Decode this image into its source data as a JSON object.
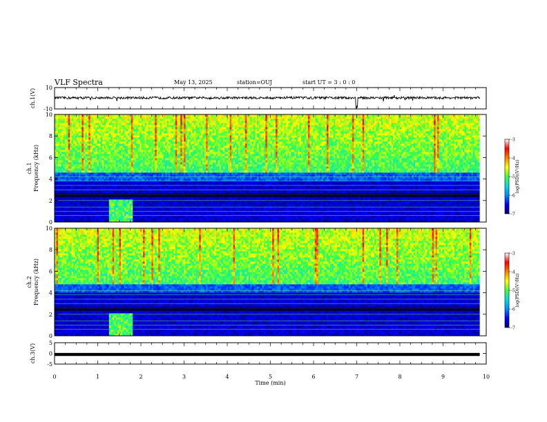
{
  "header": {
    "title": "VLF Spectra",
    "date": "May 13, 2025",
    "station": "station=OUJ",
    "start": "start  UT =   3 : 0  : 0"
  },
  "chart_data": [
    {
      "type": "line",
      "panel": "ch1-waveform",
      "ylabel": "ch.1(V)",
      "ylim": [
        -10,
        10
      ],
      "ytick_labels": [
        "10",
        "-10"
      ],
      "xlim": [
        0,
        10
      ],
      "x": [
        0,
        1,
        2,
        3,
        4,
        5,
        6,
        7,
        8,
        9,
        9.85
      ],
      "y": [
        0,
        0.2,
        -0.5,
        0.1,
        0.3,
        0.6,
        -0.2,
        -8,
        0.2,
        0,
        0
      ],
      "color": "#000000"
    },
    {
      "type": "heatmap",
      "panel": "ch1-spectrogram",
      "ylabel": "ch.1\nFrequency (kHz)",
      "ylim": [
        0,
        10
      ],
      "ytick_labels": [
        "0",
        "2",
        "4",
        "6",
        "8",
        "10"
      ],
      "xlim": [
        0,
        10
      ],
      "noise_floor_khz": 4.7,
      "colorbar": {
        "label": "log(PSD)(V²/Hz)",
        "range": [
          -7,
          -3
        ],
        "tick_labels": [
          "-3",
          "-4",
          "-5",
          "-6",
          "-7"
        ],
        "colors": [
          "#00007a",
          "#0000ff",
          "#0090ff",
          "#00e0e0",
          "#40ff40",
          "#ffff00",
          "#ff8000",
          "#ff0000",
          "#ffffff"
        ]
      }
    },
    {
      "type": "heatmap",
      "panel": "ch2-spectrogram",
      "ylabel": "ch.2\nFrequency (kHz)",
      "ylim": [
        0,
        10
      ],
      "ytick_labels": [
        "0",
        "2",
        "4",
        "6",
        "8",
        "10"
      ],
      "xlim": [
        0,
        10
      ],
      "noise_floor_khz": 4.9,
      "colorbar": {
        "label": "log(PSD)(V²/Hz)",
        "range": [
          -7,
          -3
        ],
        "tick_labels": [
          "-3",
          "-4",
          "-5",
          "-6",
          "-7"
        ],
        "colors": [
          "#00007a",
          "#0000ff",
          "#0090ff",
          "#00e0e0",
          "#40ff40",
          "#ffff00",
          "#ff8000",
          "#ff0000",
          "#ffffff"
        ]
      }
    },
    {
      "type": "line",
      "panel": "ch3-waveform",
      "ylabel": "ch.3(V)",
      "ylim": [
        -5,
        5
      ],
      "ytick_labels": [
        "5",
        "0",
        "-5"
      ],
      "xlim": [
        0,
        10
      ],
      "x": [
        0,
        9.85
      ],
      "y": [
        -0.5,
        -0.5
      ],
      "color": "#000000"
    }
  ],
  "xaxis": {
    "label": "Time (min)",
    "tick_labels": [
      "0",
      "1",
      "2",
      "3",
      "4",
      "5",
      "6",
      "7",
      "8",
      "9",
      "10"
    ]
  }
}
